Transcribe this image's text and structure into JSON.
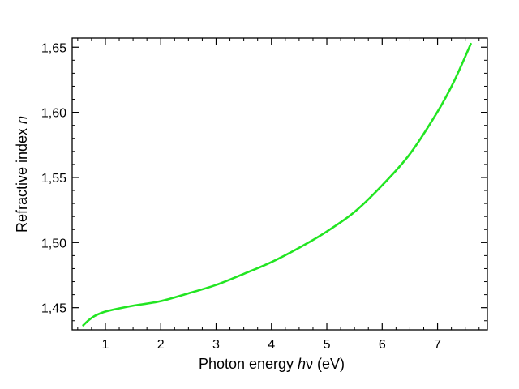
{
  "chart_data": {
    "type": "line",
    "title": "",
    "xlabel": {
      "prefix": "Photon energy ",
      "variable": "h",
      "suffix": "ν (eV)"
    },
    "ylabel": {
      "prefix": "Refractive index ",
      "variable": "n"
    },
    "xlim": [
      0.4,
      7.9
    ],
    "ylim": [
      1.433,
      1.657
    ],
    "xticks": [
      1,
      2,
      3,
      4,
      5,
      6,
      7
    ],
    "xtick_labels": [
      "1",
      "2",
      "3",
      "4",
      "5",
      "6",
      "7"
    ],
    "yticks": [
      1.45,
      1.5,
      1.55,
      1.6,
      1.65
    ],
    "ytick_labels": [
      "1,45",
      "1,50",
      "1,55",
      "1,60",
      "1,65"
    ],
    "x_minor_step": 0.25,
    "y_minor_step": 0.01,
    "grid": false,
    "legend": "none",
    "series": [
      {
        "color": "#22e522",
        "x": [
          0.6,
          0.7,
          0.8,
          0.9,
          1.0,
          1.2,
          1.5,
          2.0,
          2.5,
          3.0,
          3.5,
          4.0,
          4.5,
          5.0,
          5.5,
          6.0,
          6.5,
          7.0,
          7.3,
          7.6
        ],
        "y": [
          1.4365,
          1.4405,
          1.4435,
          1.4455,
          1.447,
          1.449,
          1.4515,
          1.455,
          1.461,
          1.4675,
          1.476,
          1.485,
          1.496,
          1.5085,
          1.5235,
          1.544,
          1.568,
          1.6005,
          1.624,
          1.6525
        ]
      }
    ]
  }
}
